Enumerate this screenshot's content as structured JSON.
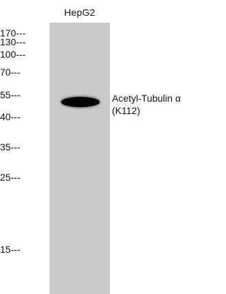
{
  "lane": {
    "label": "HepG2",
    "background_color": "#c9c9c9"
  },
  "markers": [
    {
      "label": "170---",
      "kda": 170
    },
    {
      "label": "130---",
      "kda": 130
    },
    {
      "label": "100---",
      "kda": 100
    },
    {
      "label": "70---",
      "kda": 70
    },
    {
      "label": "55---",
      "kda": 55
    },
    {
      "label": "40---",
      "kda": 40
    },
    {
      "label": "35---",
      "kda": 35
    },
    {
      "label": "25---",
      "kda": 25
    },
    {
      "label": "15---",
      "kda": 15
    }
  ],
  "band": {
    "color": "#050505"
  },
  "target": {
    "line1": "Acetyl-Tubulin α",
    "line2": "(K112)"
  }
}
